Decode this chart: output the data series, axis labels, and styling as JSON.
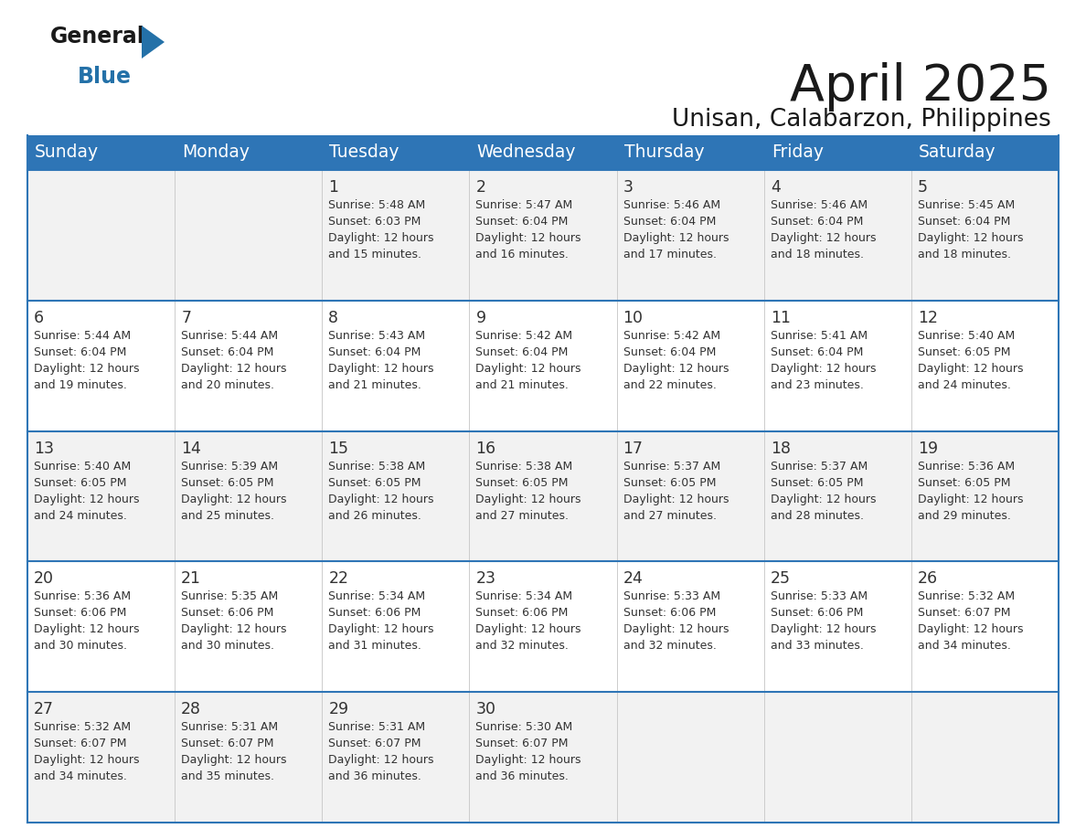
{
  "title": "April 2025",
  "subtitle": "Unisan, Calabarzon, Philippines",
  "header_color": "#2E75B6",
  "header_text_color": "#FFFFFF",
  "row_bg_even": "#F2F2F2",
  "row_bg_odd": "#FFFFFF",
  "border_color": "#2E75B6",
  "text_color": "#333333",
  "days_of_week": [
    "Sunday",
    "Monday",
    "Tuesday",
    "Wednesday",
    "Thursday",
    "Friday",
    "Saturday"
  ],
  "calendar_data": [
    [
      {
        "day": "",
        "sunrise": "",
        "sunset": "",
        "daylight_line1": "",
        "daylight_line2": ""
      },
      {
        "day": "",
        "sunrise": "",
        "sunset": "",
        "daylight_line1": "",
        "daylight_line2": ""
      },
      {
        "day": "1",
        "sunrise": "Sunrise: 5:48 AM",
        "sunset": "Sunset: 6:03 PM",
        "daylight_line1": "Daylight: 12 hours",
        "daylight_line2": "and 15 minutes."
      },
      {
        "day": "2",
        "sunrise": "Sunrise: 5:47 AM",
        "sunset": "Sunset: 6:04 PM",
        "daylight_line1": "Daylight: 12 hours",
        "daylight_line2": "and 16 minutes."
      },
      {
        "day": "3",
        "sunrise": "Sunrise: 5:46 AM",
        "sunset": "Sunset: 6:04 PM",
        "daylight_line1": "Daylight: 12 hours",
        "daylight_line2": "and 17 minutes."
      },
      {
        "day": "4",
        "sunrise": "Sunrise: 5:46 AM",
        "sunset": "Sunset: 6:04 PM",
        "daylight_line1": "Daylight: 12 hours",
        "daylight_line2": "and 18 minutes."
      },
      {
        "day": "5",
        "sunrise": "Sunrise: 5:45 AM",
        "sunset": "Sunset: 6:04 PM",
        "daylight_line1": "Daylight: 12 hours",
        "daylight_line2": "and 18 minutes."
      }
    ],
    [
      {
        "day": "6",
        "sunrise": "Sunrise: 5:44 AM",
        "sunset": "Sunset: 6:04 PM",
        "daylight_line1": "Daylight: 12 hours",
        "daylight_line2": "and 19 minutes."
      },
      {
        "day": "7",
        "sunrise": "Sunrise: 5:44 AM",
        "sunset": "Sunset: 6:04 PM",
        "daylight_line1": "Daylight: 12 hours",
        "daylight_line2": "and 20 minutes."
      },
      {
        "day": "8",
        "sunrise": "Sunrise: 5:43 AM",
        "sunset": "Sunset: 6:04 PM",
        "daylight_line1": "Daylight: 12 hours",
        "daylight_line2": "and 21 minutes."
      },
      {
        "day": "9",
        "sunrise": "Sunrise: 5:42 AM",
        "sunset": "Sunset: 6:04 PM",
        "daylight_line1": "Daylight: 12 hours",
        "daylight_line2": "and 21 minutes."
      },
      {
        "day": "10",
        "sunrise": "Sunrise: 5:42 AM",
        "sunset": "Sunset: 6:04 PM",
        "daylight_line1": "Daylight: 12 hours",
        "daylight_line2": "and 22 minutes."
      },
      {
        "day": "11",
        "sunrise": "Sunrise: 5:41 AM",
        "sunset": "Sunset: 6:04 PM",
        "daylight_line1": "Daylight: 12 hours",
        "daylight_line2": "and 23 minutes."
      },
      {
        "day": "12",
        "sunrise": "Sunrise: 5:40 AM",
        "sunset": "Sunset: 6:05 PM",
        "daylight_line1": "Daylight: 12 hours",
        "daylight_line2": "and 24 minutes."
      }
    ],
    [
      {
        "day": "13",
        "sunrise": "Sunrise: 5:40 AM",
        "sunset": "Sunset: 6:05 PM",
        "daylight_line1": "Daylight: 12 hours",
        "daylight_line2": "and 24 minutes."
      },
      {
        "day": "14",
        "sunrise": "Sunrise: 5:39 AM",
        "sunset": "Sunset: 6:05 PM",
        "daylight_line1": "Daylight: 12 hours",
        "daylight_line2": "and 25 minutes."
      },
      {
        "day": "15",
        "sunrise": "Sunrise: 5:38 AM",
        "sunset": "Sunset: 6:05 PM",
        "daylight_line1": "Daylight: 12 hours",
        "daylight_line2": "and 26 minutes."
      },
      {
        "day": "16",
        "sunrise": "Sunrise: 5:38 AM",
        "sunset": "Sunset: 6:05 PM",
        "daylight_line1": "Daylight: 12 hours",
        "daylight_line2": "and 27 minutes."
      },
      {
        "day": "17",
        "sunrise": "Sunrise: 5:37 AM",
        "sunset": "Sunset: 6:05 PM",
        "daylight_line1": "Daylight: 12 hours",
        "daylight_line2": "and 27 minutes."
      },
      {
        "day": "18",
        "sunrise": "Sunrise: 5:37 AM",
        "sunset": "Sunset: 6:05 PM",
        "daylight_line1": "Daylight: 12 hours",
        "daylight_line2": "and 28 minutes."
      },
      {
        "day": "19",
        "sunrise": "Sunrise: 5:36 AM",
        "sunset": "Sunset: 6:05 PM",
        "daylight_line1": "Daylight: 12 hours",
        "daylight_line2": "and 29 minutes."
      }
    ],
    [
      {
        "day": "20",
        "sunrise": "Sunrise: 5:36 AM",
        "sunset": "Sunset: 6:06 PM",
        "daylight_line1": "Daylight: 12 hours",
        "daylight_line2": "and 30 minutes."
      },
      {
        "day": "21",
        "sunrise": "Sunrise: 5:35 AM",
        "sunset": "Sunset: 6:06 PM",
        "daylight_line1": "Daylight: 12 hours",
        "daylight_line2": "and 30 minutes."
      },
      {
        "day": "22",
        "sunrise": "Sunrise: 5:34 AM",
        "sunset": "Sunset: 6:06 PM",
        "daylight_line1": "Daylight: 12 hours",
        "daylight_line2": "and 31 minutes."
      },
      {
        "day": "23",
        "sunrise": "Sunrise: 5:34 AM",
        "sunset": "Sunset: 6:06 PM",
        "daylight_line1": "Daylight: 12 hours",
        "daylight_line2": "and 32 minutes."
      },
      {
        "day": "24",
        "sunrise": "Sunrise: 5:33 AM",
        "sunset": "Sunset: 6:06 PM",
        "daylight_line1": "Daylight: 12 hours",
        "daylight_line2": "and 32 minutes."
      },
      {
        "day": "25",
        "sunrise": "Sunrise: 5:33 AM",
        "sunset": "Sunset: 6:06 PM",
        "daylight_line1": "Daylight: 12 hours",
        "daylight_line2": "and 33 minutes."
      },
      {
        "day": "26",
        "sunrise": "Sunrise: 5:32 AM",
        "sunset": "Sunset: 6:07 PM",
        "daylight_line1": "Daylight: 12 hours",
        "daylight_line2": "and 34 minutes."
      }
    ],
    [
      {
        "day": "27",
        "sunrise": "Sunrise: 5:32 AM",
        "sunset": "Sunset: 6:07 PM",
        "daylight_line1": "Daylight: 12 hours",
        "daylight_line2": "and 34 minutes."
      },
      {
        "day": "28",
        "sunrise": "Sunrise: 5:31 AM",
        "sunset": "Sunset: 6:07 PM",
        "daylight_line1": "Daylight: 12 hours",
        "daylight_line2": "and 35 minutes."
      },
      {
        "day": "29",
        "sunrise": "Sunrise: 5:31 AM",
        "sunset": "Sunset: 6:07 PM",
        "daylight_line1": "Daylight: 12 hours",
        "daylight_line2": "and 36 minutes."
      },
      {
        "day": "30",
        "sunrise": "Sunrise: 5:30 AM",
        "sunset": "Sunset: 6:07 PM",
        "daylight_line1": "Daylight: 12 hours",
        "daylight_line2": "and 36 minutes."
      },
      {
        "day": "",
        "sunrise": "",
        "sunset": "",
        "daylight_line1": "",
        "daylight_line2": ""
      },
      {
        "day": "",
        "sunrise": "",
        "sunset": "",
        "daylight_line1": "",
        "daylight_line2": ""
      },
      {
        "day": "",
        "sunrise": "",
        "sunset": "",
        "daylight_line1": "",
        "daylight_line2": ""
      }
    ]
  ],
  "logo_general_color": "#1a1a1a",
  "logo_blue_color": "#2471A8",
  "logo_triangle_color": "#2471A8"
}
